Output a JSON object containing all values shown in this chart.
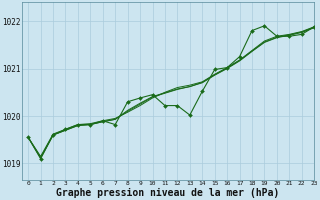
{
  "background_color": "#cce5f0",
  "grid_color": "#aaccdd",
  "line_color": "#1a6b1a",
  "xlabel": "Graphe pression niveau de la mer (hPa)",
  "xlabel_fontsize": 7,
  "yticks": [
    1019,
    1020,
    1021,
    1022
  ],
  "xlim": [
    -0.5,
    23
  ],
  "ylim": [
    1018.65,
    1022.4
  ],
  "series_main": [
    1019.55,
    1019.1,
    1019.6,
    1019.72,
    1019.82,
    1019.82,
    1019.9,
    1019.82,
    1020.3,
    1020.38,
    1020.45,
    1020.22,
    1020.22,
    1020.02,
    1020.52,
    1020.98,
    1021.02,
    1021.25,
    1021.8,
    1021.9,
    1021.68,
    1021.68,
    1021.72,
    1021.88
  ],
  "series_smooth1": [
    1019.55,
    1019.15,
    1019.62,
    1019.72,
    1019.82,
    1019.84,
    1019.9,
    1019.95,
    1020.08,
    1020.22,
    1020.38,
    1020.5,
    1020.6,
    1020.65,
    1020.72,
    1020.88,
    1021.02,
    1021.18,
    1021.38,
    1021.58,
    1021.68,
    1021.72,
    1021.78,
    1021.88
  ],
  "series_smooth2": [
    1019.55,
    1019.12,
    1019.6,
    1019.7,
    1019.8,
    1019.82,
    1019.88,
    1019.93,
    1020.1,
    1020.25,
    1020.4,
    1020.48,
    1020.56,
    1020.62,
    1020.7,
    1020.86,
    1021.0,
    1021.16,
    1021.36,
    1021.55,
    1021.65,
    1021.7,
    1021.76,
    1021.86
  ],
  "series_smooth3": [
    1019.55,
    1019.12,
    1019.6,
    1019.7,
    1019.8,
    1019.82,
    1019.88,
    1019.93,
    1020.12,
    1020.27,
    1020.41,
    1020.49,
    1020.57,
    1020.62,
    1020.71,
    1020.87,
    1021.01,
    1021.17,
    1021.37,
    1021.56,
    1021.66,
    1021.71,
    1021.77,
    1021.87
  ]
}
